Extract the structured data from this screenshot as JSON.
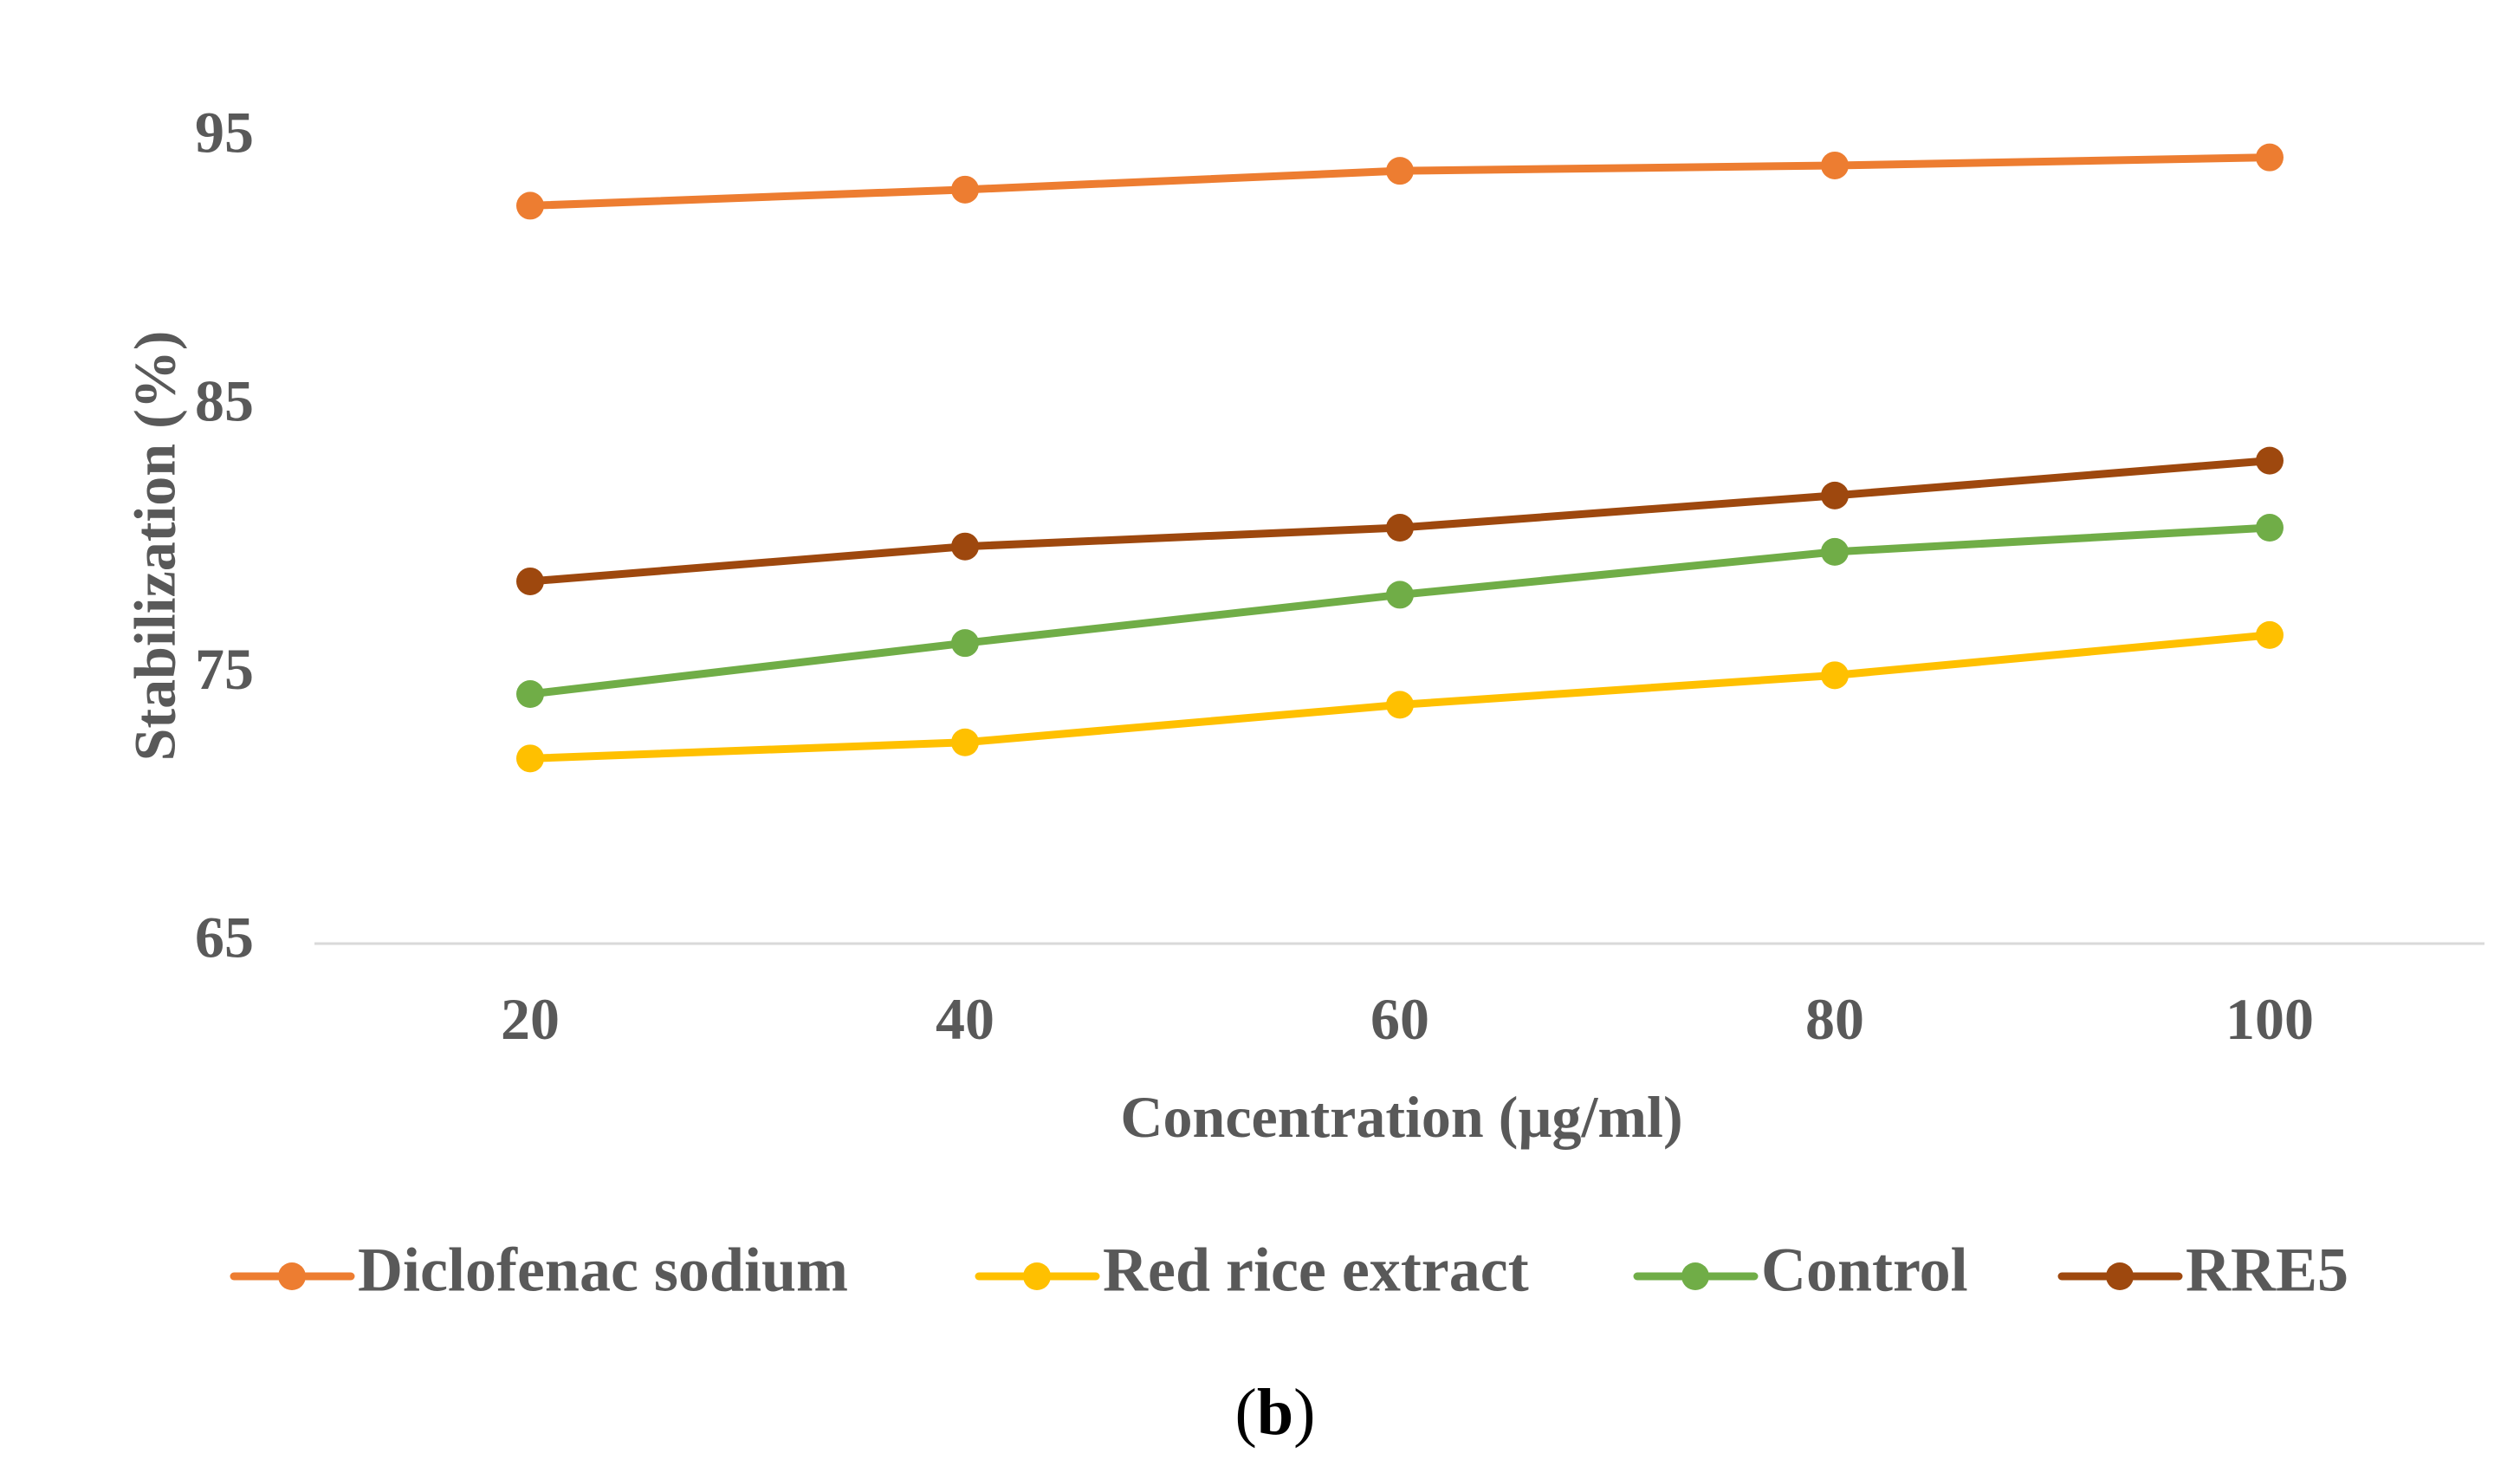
{
  "chart_data": {
    "type": "line",
    "title": "",
    "xlabel": "Concentration (µg/ml)",
    "ylabel": "Stabilization (%)",
    "categories": [
      "20",
      "40",
      "60",
      "80",
      "100"
    ],
    "ylim": [
      65,
      95
    ],
    "yticks": [
      "65",
      "75",
      "85",
      "95"
    ],
    "grid": "horizontal baseline only",
    "legend_position": "bottom",
    "series": [
      {
        "name": "Diclofenac sodium",
        "color": "#ED7D31",
        "values": [
          92.5,
          93.1,
          93.8,
          94.0,
          94.3
        ]
      },
      {
        "name": "Red rice extract",
        "color": "#FFC000",
        "values": [
          71.9,
          72.5,
          73.9,
          75.0,
          76.5
        ]
      },
      {
        "name": "Control",
        "color": "#70AD47",
        "values": [
          74.3,
          76.2,
          78.0,
          79.6,
          80.5
        ]
      },
      {
        "name": "RRE5",
        "color": "#9E480E",
        "values": [
          78.5,
          79.8,
          80.5,
          81.7,
          83.0
        ]
      }
    ]
  },
  "panel_label": {
    "open": "(",
    "letter": "b",
    "close": ")"
  }
}
